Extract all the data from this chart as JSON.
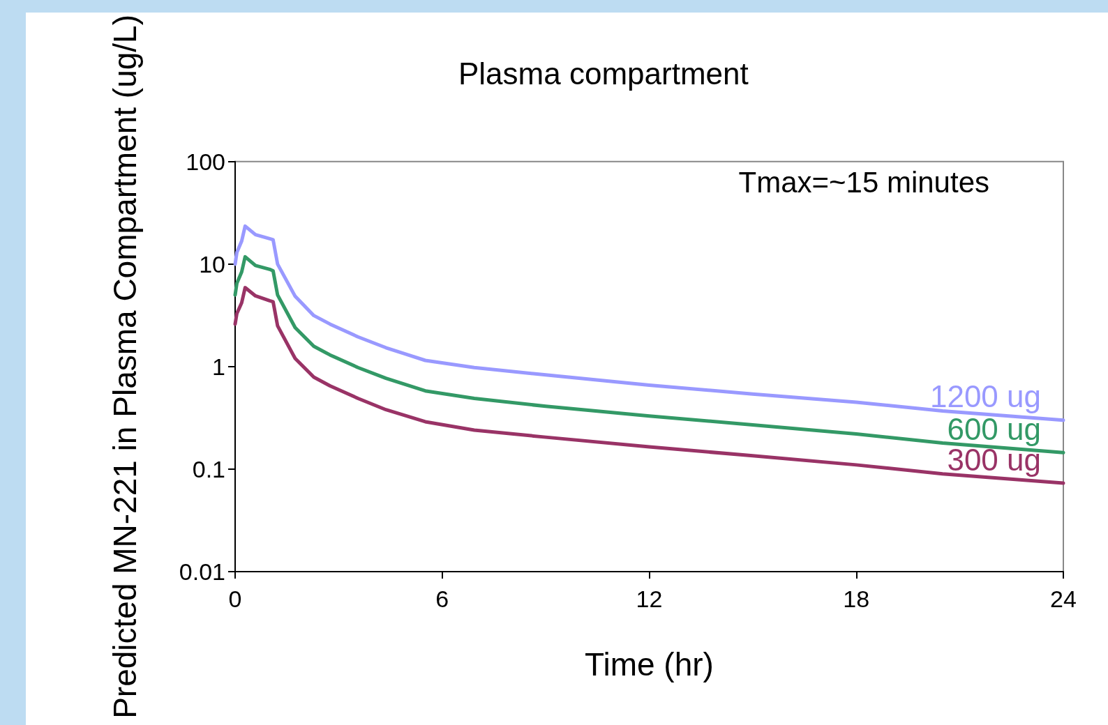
{
  "chart_data": {
    "type": "line",
    "title": "Plasma compartment",
    "xlabel": "Time (hr)",
    "ylabel": "Predicted MN-221 in Plasma Compartment (ug/L)",
    "annotations": [
      "Tmax=~15 minutes"
    ],
    "x": [
      0,
      0.05,
      0.19,
      0.29,
      0.59,
      1.0,
      1.1,
      1.23,
      1.74,
      2.28,
      2.75,
      3.56,
      4.37,
      5.51,
      6.93,
      9,
      12,
      15,
      18,
      20.5,
      24
    ],
    "series": [
      {
        "name": "1200 ug",
        "color": "#9999ff",
        "values": [
          10,
          13,
          16.8,
          23.5,
          19.4,
          17.7,
          17.3,
          10,
          4.85,
          3.15,
          2.6,
          1.95,
          1.53,
          1.15,
          0.98,
          0.83,
          0.66,
          0.54,
          0.45,
          0.37,
          0.3
        ]
      },
      {
        "name": "600 ug",
        "color": "#339966",
        "values": [
          5,
          6.5,
          8.4,
          11.8,
          9.7,
          8.9,
          8.6,
          5,
          2.4,
          1.58,
          1.3,
          0.98,
          0.77,
          0.58,
          0.49,
          0.41,
          0.33,
          0.27,
          0.22,
          0.18,
          0.145
        ]
      },
      {
        "name": "300 ug",
        "color": "#993366",
        "values": [
          2.6,
          3.3,
          4.2,
          5.9,
          4.9,
          4.4,
          4.3,
          2.5,
          1.2,
          0.79,
          0.65,
          0.49,
          0.38,
          0.29,
          0.24,
          0.205,
          0.165,
          0.135,
          0.11,
          0.09,
          0.073
        ]
      }
    ],
    "xlim": [
      0,
      24
    ],
    "xticks": [
      0,
      6,
      12,
      18,
      24
    ],
    "ylim": [
      0.01,
      100
    ],
    "yticks": [
      0.01,
      0.1,
      1,
      10,
      100
    ],
    "log": true,
    "grid": false,
    "legend": false,
    "marker": "none",
    "line_style": "solid"
  }
}
